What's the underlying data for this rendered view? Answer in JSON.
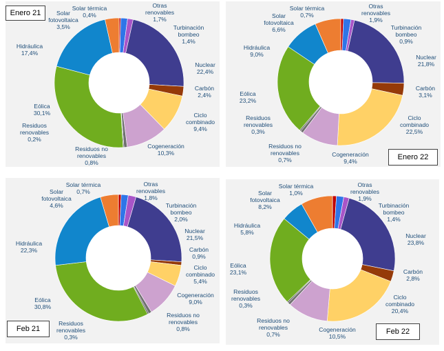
{
  "colors": {
    "Solar térmica": "#c00000",
    "Otras renovables": "#2f75e8",
    "Turbinación bombeo": "#a855c8",
    "Nuclear": "#3f3d8f",
    "Carbón": "#953a09",
    "Ciclo combinado": "#ffd166",
    "Cogeneración": "#cda2cf",
    "Residuos no renovables": "#707070",
    "Residuos renovables": "#404040",
    "Eólica": "#70ad1f",
    "Hidráulica": "#1186cc",
    "Solar fotovoltaica": "#ed7d31"
  },
  "chart_data": [
    {
      "type": "pie",
      "title": "Enero 21",
      "categories": [
        "Solar térmica",
        "Otras renovables",
        "Turbinación bombeo",
        "Nuclear",
        "Carbón",
        "Ciclo combinado",
        "Cogeneración",
        "Residuos no renovables",
        "Residuos renovables",
        "Eólica",
        "Hidráulica",
        "Solar fotovoltaica"
      ],
      "labels": [
        "Solar térmica",
        "Otras renovables",
        "Turbinación bombeo",
        "Nuclear",
        "Carbón",
        "Ciclo combinado",
        "Cogeneración",
        "Residuos no renovables",
        "Residuos renovables",
        "Eólica",
        "Hidráulica",
        "Solar fotovoltaica"
      ],
      "values": [
        0.4,
        1.7,
        1.4,
        22.4,
        2.4,
        9.4,
        10.3,
        0.8,
        0.2,
        30.1,
        17.4,
        3.5
      ],
      "display": [
        "0,4%",
        "1,7%",
        "1,4%",
        "22,4%",
        "2,4%",
        "9,4%",
        "10,3%",
        "0,8%",
        "0,2%",
        "30,1%",
        "17,4%",
        "3,5%"
      ]
    },
    {
      "type": "pie",
      "title": "Enero 22",
      "categories": [
        "Solar térmica",
        "Otras renovables",
        "Turbinación bombeo",
        "Nuclear",
        "Carbón",
        "Ciclo combinado",
        "Cogeneración",
        "Residuos no renovables",
        "Residuos renovables",
        "Eólica",
        "Hidráulica",
        "Solar fotovoltaica"
      ],
      "labels": [
        "Solar térmica",
        "Otras renovables",
        "Turbinación bombeo",
        "Nuclear",
        "Carbón",
        "Ciclo combinado",
        "Cogeneración",
        "Residuos no renovables",
        "Residuos renovables",
        "Eólica",
        "Hidráulica",
        "Solar fotovoltaica"
      ],
      "values": [
        0.7,
        1.9,
        0.9,
        21.8,
        3.1,
        22.5,
        9.4,
        0.7,
        0.3,
        23.2,
        9.0,
        6.6
      ],
      "display": [
        "0,7%",
        "1,9%",
        "0,9%",
        "21,8%",
        "3,1%",
        "22,5%",
        "9,4%",
        "0,7%",
        "0,3%",
        "23,2%",
        "9,0%",
        "6,6%"
      ]
    },
    {
      "type": "pie",
      "title": "Feb  21",
      "categories": [
        "Solar térmica",
        "Otras renovables",
        "Turbinación bombeo",
        "Nuclear",
        "Carbón",
        "Ciclo combinado",
        "Cogeneración",
        "Residuos no renovables",
        "Residuos renovables",
        "Eólica",
        "Hidráulica",
        "Solar fotovoltaica"
      ],
      "labels": [
        "Solar térmica",
        "Otras renovables",
        "Turbinación bombeo",
        "Nuclear",
        "Carbón",
        "Ciclo combinado",
        "Cogeneración",
        "Residuos no renovables",
        "Residuos renovables",
        "Eólica",
        "Hidráulica",
        "Solar fotovoltaica"
      ],
      "values": [
        0.7,
        1.8,
        2.0,
        21.5,
        0.9,
        5.4,
        9.0,
        0.8,
        0.3,
        30.8,
        22.3,
        4.6
      ],
      "display": [
        "0,7%",
        "1,8%",
        "2,0%",
        "21,5%",
        "0,9%",
        "5,4%",
        "9,0%",
        "0,8%",
        "0,3%",
        "30,8%",
        "22,3%",
        "4,6%"
      ]
    },
    {
      "type": "pie",
      "title": "Feb  22",
      "categories": [
        "Solar térmica",
        "Otras renovables",
        "Turbinación bombeo",
        "Nuclear",
        "Carbón",
        "Ciclo combinado",
        "Cogeneración",
        "Residuos no renovables",
        "Residuos renovables",
        "Eólica",
        "Hidráulica",
        "Solar fotovoltaica"
      ],
      "labels": [
        "Solar térmica",
        "Otras renovables",
        "Turbinación bombeo",
        "Nuclear",
        "Carbón",
        "Ciclo combinado",
        "Cogeneración",
        "Residuos no renovables",
        "Residuos renovables",
        "Eólica",
        "Hidráulica",
        "Solar fotovoltaica"
      ],
      "values": [
        1.0,
        1.9,
        1.4,
        23.8,
        2.8,
        20.4,
        10.5,
        0.7,
        0.3,
        23.1,
        5.8,
        8.2
      ],
      "display": [
        "1,0%",
        "1,9%",
        "1,4%",
        "23,8%",
        "2,8%",
        "20,4%",
        "10,5%",
        "0,7%",
        "0,3%",
        "23,1%",
        "5,8%",
        "8,2%"
      ]
    }
  ]
}
